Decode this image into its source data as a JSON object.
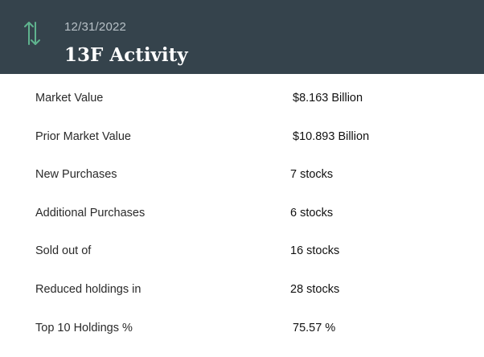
{
  "header": {
    "date": "12/31/2022",
    "title": "13F Activity",
    "icon": "up-down-arrows-icon",
    "icon_color": "#5fb38e",
    "background": "#35434c"
  },
  "rows": [
    {
      "label": "Market Value",
      "value": "$8.163 Billion"
    },
    {
      "label": "Prior Market Value",
      "value": "$10.893 Billion"
    },
    {
      "label": "New Purchases",
      "value": "7 stocks"
    },
    {
      "label": "Additional Purchases",
      "value": "6 stocks"
    },
    {
      "label": "Sold out of",
      "value": "16 stocks"
    },
    {
      "label": "Reduced holdings in",
      "value": "28 stocks"
    },
    {
      "label": "Top 10 Holdings %",
      "value": "75.57 %"
    }
  ]
}
